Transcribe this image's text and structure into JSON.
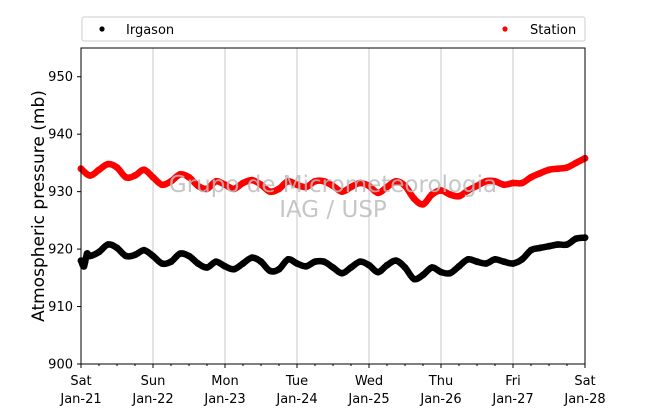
{
  "chart_data": {
    "type": "scatter",
    "title": "",
    "xlabel": "",
    "ylabel": "Atmospheric pressure (mb)",
    "ylim": [
      900,
      955
    ],
    "xlim": [
      "2017-01-21",
      "2017-01-28"
    ],
    "yticks": [
      900,
      910,
      920,
      930,
      940,
      950
    ],
    "xticks": [
      {
        "day": "Sat",
        "date": "Jan-21",
        "value": "2017-01-21"
      },
      {
        "day": "Sun",
        "date": "Jan-22",
        "value": "2017-01-22"
      },
      {
        "day": "Mon",
        "date": "Jan-23",
        "value": "2017-01-23"
      },
      {
        "day": "Tue",
        "date": "Jan-24",
        "value": "2017-01-24"
      },
      {
        "day": "Wed",
        "date": "Jan-25",
        "value": "2017-01-25"
      },
      {
        "day": "Thu",
        "date": "Jan-26",
        "value": "2017-01-26"
      },
      {
        "day": "Fri",
        "date": "Jan-27",
        "value": "2017-01-27"
      },
      {
        "day": "Sat",
        "date": "Jan-28",
        "value": "2017-01-28"
      }
    ],
    "grid": "vertical",
    "legend": "top",
    "watermark": [
      "Grupo de Micrometeorologia",
      "IAG / USP"
    ],
    "series": [
      {
        "name": "Irgason",
        "color": "#000000",
        "x": [
          "2017-01-21 00:00",
          "2017-01-21 01:00",
          "2017-01-21 02:00",
          "2017-01-21 03:00",
          "2017-01-21 06:00",
          "2017-01-21 09:00",
          "2017-01-21 12:00",
          "2017-01-21 15:00",
          "2017-01-21 18:00",
          "2017-01-21 21:00",
          "2017-01-22 00:00",
          "2017-01-22 03:00",
          "2017-01-22 06:00",
          "2017-01-22 09:00",
          "2017-01-22 12:00",
          "2017-01-22 15:00",
          "2017-01-22 18:00",
          "2017-01-22 21:00",
          "2017-01-23 00:00",
          "2017-01-23 03:00",
          "2017-01-23 06:00",
          "2017-01-23 09:00",
          "2017-01-23 12:00",
          "2017-01-23 15:00",
          "2017-01-23 18:00",
          "2017-01-23 21:00",
          "2017-01-24 00:00",
          "2017-01-24 03:00",
          "2017-01-24 06:00",
          "2017-01-24 09:00",
          "2017-01-24 12:00",
          "2017-01-24 15:00",
          "2017-01-24 18:00",
          "2017-01-24 21:00",
          "2017-01-25 00:00",
          "2017-01-25 03:00",
          "2017-01-25 06:00",
          "2017-01-25 09:00",
          "2017-01-25 12:00",
          "2017-01-25 15:00",
          "2017-01-25 18:00",
          "2017-01-25 21:00",
          "2017-01-26 00:00",
          "2017-01-26 03:00",
          "2017-01-26 06:00",
          "2017-01-26 09:00",
          "2017-01-26 12:00",
          "2017-01-26 15:00",
          "2017-01-26 18:00",
          "2017-01-26 21:00",
          "2017-01-27 00:00",
          "2017-01-27 03:00",
          "2017-01-27 06:00",
          "2017-01-27 09:00",
          "2017-01-27 12:00",
          "2017-01-27 15:00",
          "2017-01-27 18:00",
          "2017-01-27 21:00",
          "2017-01-28 00:00"
        ],
        "y": [
          918.0,
          917.0,
          919.2,
          918.8,
          919.5,
          920.8,
          920.2,
          918.8,
          919.0,
          919.8,
          918.8,
          917.5,
          917.8,
          919.2,
          918.8,
          917.5,
          916.8,
          917.8,
          917.0,
          916.5,
          917.5,
          918.5,
          917.8,
          916.2,
          916.5,
          918.2,
          917.5,
          917.0,
          917.8,
          917.8,
          916.8,
          915.8,
          916.8,
          917.8,
          917.2,
          916.0,
          917.2,
          918.0,
          916.8,
          914.8,
          915.5,
          916.8,
          916.0,
          915.8,
          917.0,
          918.2,
          917.8,
          917.5,
          918.2,
          917.8,
          917.5,
          918.2,
          919.8,
          920.2,
          920.5,
          920.8,
          920.8,
          921.8,
          922.0
        ]
      },
      {
        "name": "Station",
        "color": "#ff0000",
        "x": [
          "2017-01-21 00:00",
          "2017-01-21 03:00",
          "2017-01-21 06:00",
          "2017-01-21 09:00",
          "2017-01-21 12:00",
          "2017-01-21 15:00",
          "2017-01-21 18:00",
          "2017-01-21 21:00",
          "2017-01-22 00:00",
          "2017-01-22 03:00",
          "2017-01-22 06:00",
          "2017-01-22 09:00",
          "2017-01-22 12:00",
          "2017-01-22 15:00",
          "2017-01-22 18:00",
          "2017-01-22 21:00",
          "2017-01-23 00:00",
          "2017-01-23 03:00",
          "2017-01-23 06:00",
          "2017-01-23 09:00",
          "2017-01-23 12:00",
          "2017-01-23 15:00",
          "2017-01-23 18:00",
          "2017-01-23 21:00",
          "2017-01-24 00:00",
          "2017-01-24 03:00",
          "2017-01-24 06:00",
          "2017-01-24 09:00",
          "2017-01-24 12:00",
          "2017-01-24 15:00",
          "2017-01-24 18:00",
          "2017-01-24 21:00",
          "2017-01-25 00:00",
          "2017-01-25 03:00",
          "2017-01-25 06:00",
          "2017-01-25 09:00",
          "2017-01-25 12:00",
          "2017-01-25 15:00",
          "2017-01-25 18:00",
          "2017-01-25 21:00",
          "2017-01-26 00:00",
          "2017-01-26 03:00",
          "2017-01-26 06:00",
          "2017-01-26 09:00",
          "2017-01-26 12:00",
          "2017-01-26 15:00",
          "2017-01-26 18:00",
          "2017-01-26 21:00",
          "2017-01-27 00:00",
          "2017-01-27 03:00",
          "2017-01-27 06:00",
          "2017-01-27 09:00",
          "2017-01-27 12:00",
          "2017-01-27 15:00",
          "2017-01-27 18:00",
          "2017-01-27 21:00",
          "2017-01-28 00:00"
        ],
        "y": [
          934.0,
          932.8,
          933.8,
          934.8,
          934.2,
          932.5,
          932.8,
          933.8,
          932.5,
          931.2,
          931.8,
          933.0,
          932.5,
          931.0,
          930.5,
          931.8,
          931.2,
          930.5,
          931.5,
          932.0,
          931.2,
          930.0,
          930.5,
          931.8,
          931.2,
          930.8,
          931.8,
          931.8,
          931.0,
          930.0,
          930.8,
          931.5,
          931.0,
          929.8,
          930.8,
          931.8,
          931.0,
          928.8,
          927.8,
          929.5,
          930.2,
          929.5,
          929.2,
          930.2,
          931.0,
          931.8,
          931.8,
          931.2,
          931.5,
          931.5,
          932.5,
          933.2,
          933.8,
          934.0,
          934.2,
          935.0,
          935.8
        ]
      }
    ]
  }
}
